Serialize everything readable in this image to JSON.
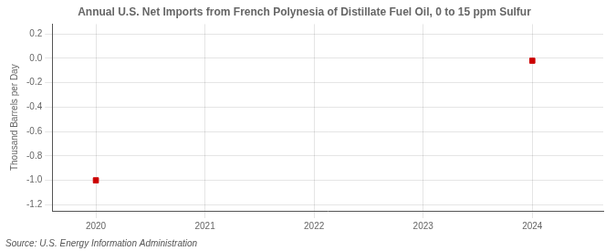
{
  "chart_data": {
    "type": "scatter",
    "title": "Annual U.S. Net Imports from French Polynesia of Distillate Fuel Oil, 0 to 15 ppm Sulfur",
    "ylabel": "Thousand Barrels per Day",
    "annotations": [
      "Source: U.S. Energy Information Administration"
    ],
    "x": [
      2020,
      2024
    ],
    "values": [
      -1.0,
      -0.02
    ],
    "color": "#cc0000",
    "marker": "square",
    "xlim": [
      2019.6,
      2024.65
    ],
    "ylim": [
      -1.25,
      0.28
    ],
    "xticks": [
      2020,
      2021,
      2022,
      2023,
      2024
    ],
    "yticks": [
      0.2,
      {
        "value": 0,
        "label": "0.0"
      },
      -0.2,
      -0.4,
      -0.6,
      -0.8,
      {
        "value": -1,
        "label": "-1.0"
      },
      -1.2
    ],
    "grid": true
  }
}
